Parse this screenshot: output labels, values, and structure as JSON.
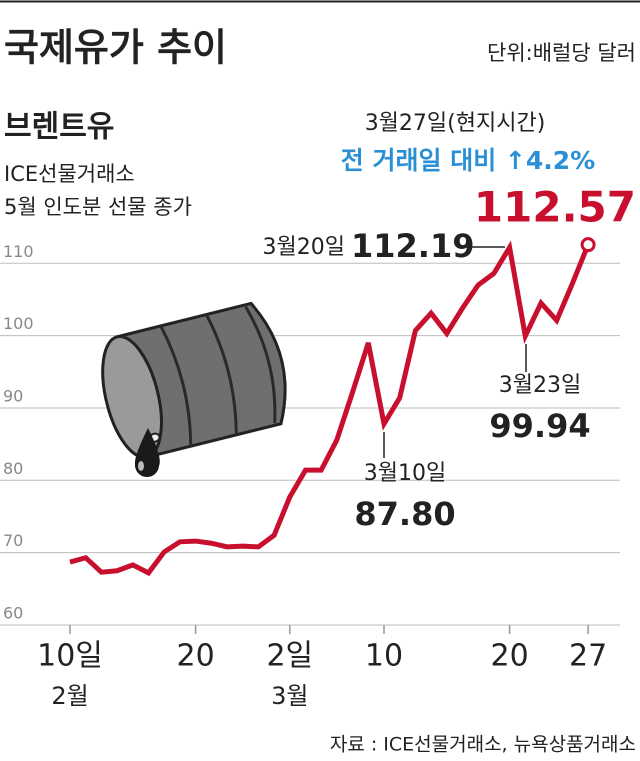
{
  "chart_data": {
    "type": "line",
    "title": "국제유가 추이",
    "unit": "단위:배럴당 달러",
    "notes": [
      "ICE선물거래소",
      "5월 인도분 선물 종가"
    ],
    "change_label": "전 거래일 대비 ↑4.2%",
    "source": "자료 : ICE선물거래소, 뉴욕상품거래소",
    "categories": [
      "10일",
      null,
      null,
      null,
      null,
      null,
      null,
      null,
      "20",
      null,
      null,
      null,
      null,
      null,
      "2일",
      null,
      null,
      null,
      null,
      null,
      "10",
      null,
      null,
      null,
      null,
      null,
      null,
      null,
      "20",
      null,
      null,
      null,
      null,
      "27"
    ],
    "category_groups": [
      "2월",
      null,
      null,
      null,
      null,
      null,
      null,
      null,
      null,
      null,
      null,
      null,
      null,
      null,
      "3월",
      null,
      null,
      null,
      null,
      null,
      null,
      null,
      null,
      null,
      null,
      null,
      null,
      null,
      null,
      null,
      null,
      null,
      null,
      null
    ],
    "series": [
      {
        "name": "브렌트유",
        "color": "#c8102e",
        "values": [
          68.7,
          69.3,
          67.3,
          67.5,
          68.3,
          67.2,
          70.1,
          71.5,
          71.6,
          71.3,
          70.8,
          70.9,
          70.8,
          72.4,
          77.7,
          81.4,
          81.4,
          85.6,
          92.2,
          99.0,
          87.8,
          91.4,
          100.7,
          103.1,
          100.3,
          103.8,
          107.0,
          108.6,
          112.19,
          99.94,
          104.5,
          102.1,
          107.2,
          112.57
        ],
        "value_labels": [
          null,
          null,
          null,
          null,
          null,
          null,
          null,
          null,
          null,
          null,
          null,
          null,
          null,
          null,
          null,
          null,
          null,
          null,
          null,
          null,
          "87.80",
          null,
          null,
          null,
          null,
          null,
          null,
          null,
          "112.19",
          "99.94",
          null,
          null,
          null,
          "112.57"
        ],
        "date_labels": [
          null,
          null,
          null,
          null,
          null,
          null,
          null,
          null,
          null,
          null,
          null,
          null,
          null,
          null,
          null,
          null,
          null,
          null,
          null,
          null,
          "3월10일",
          null,
          null,
          null,
          null,
          null,
          null,
          null,
          "3월20일",
          "3월23일",
          null,
          null,
          null,
          "3월27일(현지시간)"
        ]
      }
    ],
    "ylim": [
      60,
      114.6
    ],
    "yticks": [
      60,
      70,
      80,
      90,
      100,
      110
    ],
    "grid": true
  }
}
